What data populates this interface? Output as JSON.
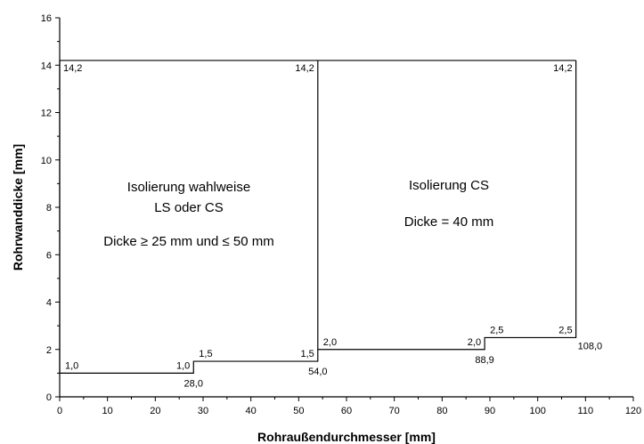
{
  "chart_data": {
    "type": "line",
    "title": "",
    "xlabel": "Rohraußendurchmesser [mm]",
    "ylabel": "Rohrwanddicke [mm]",
    "xlim": [
      0,
      120
    ],
    "ylim": [
      0,
      16
    ],
    "xticks": [
      0,
      10,
      20,
      30,
      40,
      50,
      60,
      70,
      80,
      90,
      100,
      110,
      120
    ],
    "yticks": [
      0,
      2,
      4,
      6,
      8,
      10,
      12,
      14,
      16
    ],
    "grid": false,
    "legend": "none",
    "boundaries": [
      {
        "name": "lower-limit",
        "x": [
          0,
          28,
          28,
          54,
          54,
          88.9,
          88.9,
          108,
          108
        ],
        "y": [
          1.0,
          1.0,
          1.5,
          1.5,
          2.0,
          2.0,
          2.5,
          2.5,
          14.2
        ]
      },
      {
        "name": "upper-limit",
        "x": [
          0,
          108
        ],
        "y": [
          14.2,
          14.2
        ]
      },
      {
        "name": "left-edge",
        "x": [
          0,
          0
        ],
        "y": [
          1.0,
          14.2
        ]
      },
      {
        "name": "divider",
        "x": [
          54,
          54
        ],
        "y": [
          2.0,
          14.2
        ]
      }
    ],
    "point_labels": [
      {
        "text": "14,2",
        "x": 0,
        "y": 14.2,
        "anchor": "start",
        "dx": 4,
        "dy": 12
      },
      {
        "text": "14,2",
        "x": 54,
        "y": 14.2,
        "anchor": "end",
        "dx": -4,
        "dy": 12
      },
      {
        "text": "14,2",
        "x": 108,
        "y": 14.2,
        "anchor": "end",
        "dx": -4,
        "dy": 12
      },
      {
        "text": "1,0",
        "x": 0,
        "y": 1.0,
        "anchor": "start",
        "dx": 6,
        "dy": -5
      },
      {
        "text": "1,0",
        "x": 28,
        "y": 1.0,
        "anchor": "end",
        "dx": -4,
        "dy": -5
      },
      {
        "text": "28,0",
        "x": 28,
        "y": 1.0,
        "anchor": "middle",
        "dx": 0,
        "dy": 15
      },
      {
        "text": "1,5",
        "x": 28,
        "y": 1.5,
        "anchor": "start",
        "dx": 6,
        "dy": -5
      },
      {
        "text": "1,5",
        "x": 54,
        "y": 1.5,
        "anchor": "end",
        "dx": -4,
        "dy": -5
      },
      {
        "text": "54,0",
        "x": 54,
        "y": 1.5,
        "anchor": "middle",
        "dx": 0,
        "dy": 15
      },
      {
        "text": "2,0",
        "x": 54,
        "y": 2.0,
        "anchor": "start",
        "dx": 6,
        "dy": -5
      },
      {
        "text": "2,0",
        "x": 88.9,
        "y": 2.0,
        "anchor": "end",
        "dx": -4,
        "dy": -5
      },
      {
        "text": "88,9",
        "x": 88.9,
        "y": 2.0,
        "anchor": "middle",
        "dx": 0,
        "dy": 15
      },
      {
        "text": "2,5",
        "x": 88.9,
        "y": 2.5,
        "anchor": "start",
        "dx": 6,
        "dy": -5
      },
      {
        "text": "2,5",
        "x": 108,
        "y": 2.5,
        "anchor": "end",
        "dx": -4,
        "dy": -5
      },
      {
        "text": "108,0",
        "x": 108,
        "y": 2.5,
        "anchor": "start",
        "dx": 2,
        "dy": 13
      }
    ],
    "annotations": [
      {
        "region": "left",
        "lines": [
          "Isolierung wahlweise",
          "LS oder CS",
          "Dicke ≥ 25 mm und ≤ 50 mm"
        ]
      },
      {
        "region": "right",
        "lines": [
          "Isolierung CS",
          "Dicke = 40 mm"
        ]
      }
    ]
  }
}
